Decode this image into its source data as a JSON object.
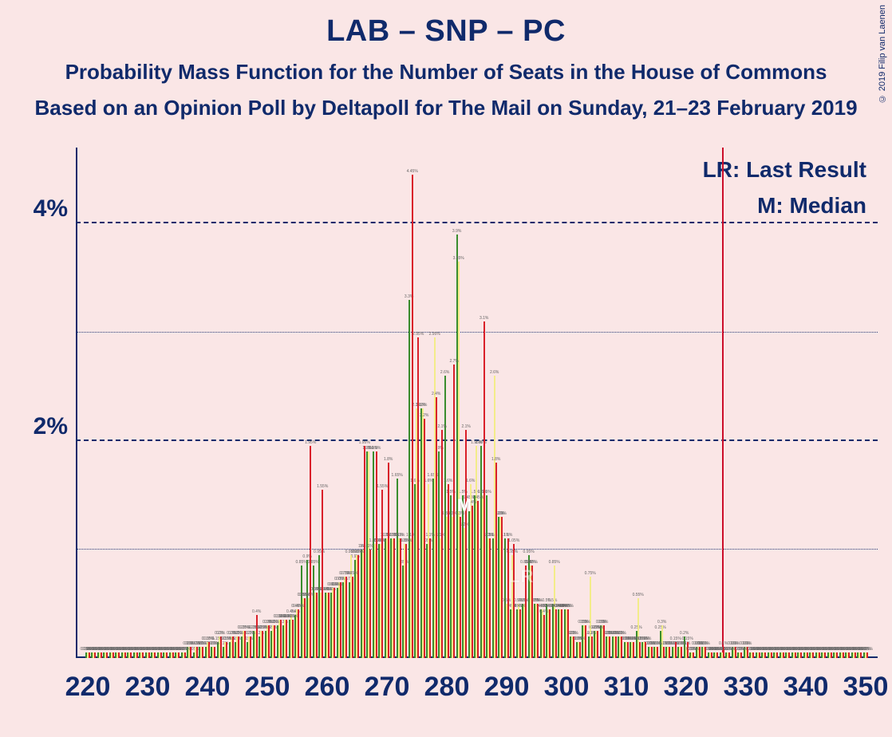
{
  "copyright": "© 2019 Filip van Laenen",
  "titles": {
    "main": "LAB – SNP – PC",
    "sub1": "Probability Mass Function for the Number of Seats in the House of Commons",
    "sub2": "Based on an Opinion Poll by Deltapoll for The Mail on Sunday, 21–23 February 2019"
  },
  "legend": {
    "lr": "LR: Last Result",
    "m": "M: Median"
  },
  "colors": {
    "bg": "#fae6e6",
    "text": "#102a6b",
    "series": [
      "#3a8d2e",
      "#f3ec8a",
      "#d9202a"
    ],
    "vline": "#cc0e2a"
  },
  "chart": {
    "xmin": 218,
    "xmax": 352,
    "ymin": 0,
    "ymax": 4.7,
    "ygrid_major": [
      2,
      4
    ],
    "ygrid_minor": [
      1,
      3
    ],
    "xticks": [
      220,
      230,
      240,
      250,
      260,
      270,
      280,
      290,
      300,
      310,
      320,
      330,
      340,
      350
    ],
    "xtick_format": "{v}",
    "ytick_format": "{v}%",
    "lr_x": 326,
    "median_x": 283,
    "marker_m": "M",
    "marker_lr": "LR",
    "bar_rel_width": 0.27,
    "series": [
      {
        "name": "green",
        "color": "#3a8d2e",
        "offset": 0,
        "data": {
          "220": 0.05,
          "221": 0.05,
          "222": 0.05,
          "223": 0.05,
          "224": 0.05,
          "225": 0.05,
          "226": 0.05,
          "227": 0.05,
          "228": 0.05,
          "229": 0.05,
          "230": 0.05,
          "231": 0.05,
          "232": 0.05,
          "233": 0.05,
          "234": 0.05,
          "235": 0.05,
          "236": 0.05,
          "237": 0.1,
          "238": 0.05,
          "239": 0.1,
          "240": 0.1,
          "241": 0.1,
          "242": 0.15,
          "243": 0.1,
          "244": 0.15,
          "245": 0.15,
          "246": 0.2,
          "247": 0.15,
          "248": 0.25,
          "249": 0.2,
          "250": 0.25,
          "251": 0.25,
          "252": 0.3,
          "253": 0.3,
          "254": 0.35,
          "255": 0.4,
          "256": 0.85,
          "257": 0.9,
          "258": 0.85,
          "259": 0.95,
          "260": 0.6,
          "261": 0.6,
          "262": 0.65,
          "263": 0.7,
          "264": 0.7,
          "265": 0.9,
          "266": 1.0,
          "267": 1.9,
          "268": 1.9,
          "269": 1.05,
          "270": 1.1,
          "271": 1.1,
          "272": 1.65,
          "273": 0.85,
          "274": 3.3,
          "275": 1.6,
          "276": 2.3,
          "277": 1.05,
          "278": 1.65,
          "279": 1.9,
          "280": 2.6,
          "281": 1.5,
          "282": 3.9,
          "283": 1.5,
          "284": 1.45,
          "285": 1.5,
          "286": 1.95,
          "287": 1.5,
          "288": 1.1,
          "289": 1.3,
          "290": 1.1,
          "291": 0.45,
          "292": 0.45,
          "293": 0.5,
          "294": 0.95,
          "295": 0.5,
          "296": 0.45,
          "297": 0.5,
          "298": 0.5,
          "299": 0.45,
          "300": 0.45,
          "301": 0.2,
          "302": 0.15,
          "303": 0.3,
          "304": 0.2,
          "305": 0.25,
          "306": 0.3,
          "307": 0.2,
          "308": 0.2,
          "309": 0.2,
          "310": 0.15,
          "311": 0.15,
          "312": 0.25,
          "313": 0.15,
          "314": 0.1,
          "315": 0.1,
          "316": 0.25,
          "317": 0.1,
          "318": 0.1,
          "319": 0.1,
          "320": 0.2,
          "321": 0.05,
          "322": 0.1,
          "323": 0.1,
          "324": 0.05,
          "325": 0.05,
          "326": 0.05,
          "327": 0.05,
          "328": 0.1,
          "329": 0.05,
          "330": 0.1,
          "331": 0.05,
          "332": 0.05,
          "333": 0.05,
          "334": 0.05,
          "335": 0.05,
          "336": 0.05,
          "337": 0.05,
          "338": 0.05,
          "339": 0.05,
          "340": 0.05,
          "341": 0.05,
          "342": 0.05,
          "343": 0.05,
          "344": 0.05,
          "345": 0.05,
          "346": 0.05,
          "347": 0.05,
          "348": 0.05,
          "349": 0.05,
          "350": 0.05
        }
      },
      {
        "name": "yellow",
        "color": "#f3ec8a",
        "offset": 1,
        "data": {
          "220": 0.05,
          "221": 0.05,
          "222": 0.05,
          "223": 0.05,
          "224": 0.05,
          "225": 0.05,
          "226": 0.05,
          "227": 0.05,
          "228": 0.05,
          "229": 0.05,
          "230": 0.05,
          "231": 0.05,
          "232": 0.05,
          "233": 0.05,
          "234": 0.05,
          "235": 0.05,
          "236": 0.05,
          "237": 0.1,
          "238": 0.1,
          "239": 0.1,
          "240": 0.15,
          "241": 0.1,
          "242": 0.2,
          "243": 0.15,
          "244": 0.2,
          "245": 0.2,
          "246": 0.25,
          "247": 0.2,
          "248": 0.25,
          "249": 0.25,
          "250": 0.3,
          "251": 0.3,
          "252": 0.35,
          "253": 0.35,
          "254": 0.4,
          "255": 0.45,
          "256": 0.55,
          "257": 0.55,
          "258": 0.6,
          "259": 0.6,
          "260": 0.6,
          "261": 0.65,
          "262": 0.7,
          "263": 0.75,
          "264": 0.95,
          "265": 0.95,
          "266": 1.0,
          "267": 1.9,
          "268": 1.05,
          "269": 1.05,
          "270": 1.1,
          "271": 1.1,
          "272": 1.1,
          "273": 1.05,
          "274": 1.1,
          "275": 2.3,
          "276": 2.3,
          "277": 1.6,
          "278": 2.95,
          "279": 1.1,
          "280": 1.3,
          "281": 1.3,
          "282": 3.65,
          "283": 1.2,
          "284": 1.6,
          "285": 1.95,
          "286": 1.5,
          "287": 1.1,
          "288": 2.6,
          "289": 1.3,
          "290": 0.5,
          "291": 0.95,
          "292": 0.5,
          "293": 0.5,
          "294": 0.85,
          "295": 0.5,
          "296": 0.45,
          "297": 0.45,
          "298": 0.85,
          "299": 0.45,
          "300": 0.45,
          "301": 0.2,
          "302": 0.15,
          "303": 0.3,
          "304": 0.75,
          "305": 0.25,
          "306": 0.3,
          "307": 0.2,
          "308": 0.2,
          "309": 0.2,
          "310": 0.15,
          "311": 0.15,
          "312": 0.55,
          "313": 0.15,
          "314": 0.1,
          "315": 0.1,
          "316": 0.3,
          "317": 0.1,
          "318": 0.1,
          "319": 0.1,
          "320": 0.1,
          "321": 0.05,
          "322": 0.1,
          "323": 0.1,
          "324": 0.05,
          "325": 0.05,
          "326": 0.05,
          "327": 0.05,
          "328": 0.1,
          "329": 0.05,
          "330": 0.1,
          "331": 0.05,
          "332": 0.05,
          "333": 0.05,
          "334": 0.05,
          "335": 0.05,
          "336": 0.05,
          "337": 0.05,
          "338": 0.05,
          "339": 0.05,
          "340": 0.05,
          "341": 0.05,
          "342": 0.05,
          "343": 0.05,
          "344": 0.05,
          "345": 0.05,
          "346": 0.05,
          "347": 0.05,
          "348": 0.05,
          "349": 0.05,
          "350": 0.05
        }
      },
      {
        "name": "red",
        "color": "#d9202a",
        "offset": 2,
        "data": {
          "220": 0.05,
          "221": 0.05,
          "222": 0.05,
          "223": 0.05,
          "224": 0.05,
          "225": 0.05,
          "226": 0.05,
          "227": 0.05,
          "228": 0.05,
          "229": 0.05,
          "230": 0.05,
          "231": 0.05,
          "232": 0.05,
          "233": 0.05,
          "234": 0.05,
          "235": 0.05,
          "236": 0.05,
          "237": 0.1,
          "238": 0.1,
          "239": 0.1,
          "240": 0.15,
          "241": 0.1,
          "242": 0.2,
          "243": 0.15,
          "244": 0.2,
          "245": 0.2,
          "246": 0.25,
          "247": 0.2,
          "248": 0.4,
          "249": 0.25,
          "250": 0.3,
          "251": 0.3,
          "252": 0.35,
          "253": 0.35,
          "254": 0.35,
          "255": 0.45,
          "256": 0.55,
          "257": 1.95,
          "258": 0.6,
          "259": 1.55,
          "260": 0.6,
          "261": 0.65,
          "262": 0.7,
          "263": 0.75,
          "264": 0.75,
          "265": 0.95,
          "266": 1.95,
          "267": 1.0,
          "268": 1.9,
          "269": 1.55,
          "270": 1.8,
          "271": 1.1,
          "272": 1.1,
          "273": 1.05,
          "274": 4.45,
          "275": 2.95,
          "276": 2.2,
          "277": 1.1,
          "278": 2.4,
          "279": 2.1,
          "280": 1.6,
          "281": 2.7,
          "282": 1.3,
          "283": 2.1,
          "284": 1.4,
          "285": 1.45,
          "286": 3.1,
          "287": 1.1,
          "288": 1.8,
          "289": 1.3,
          "290": 1.1,
          "291": 1.05,
          "292": 0.45,
          "293": 0.85,
          "294": 0.85,
          "295": 0.5,
          "296": 0.4,
          "297": 0.45,
          "298": 0.45,
          "299": 0.45,
          "300": 0.45,
          "301": 0.2,
          "302": 0.15,
          "303": 0.3,
          "304": 0.2,
          "305": 0.25,
          "306": 0.3,
          "307": 0.2,
          "308": 0.2,
          "309": 0.2,
          "310": 0.15,
          "311": 0.15,
          "312": 0.15,
          "313": 0.15,
          "314": 0.1,
          "315": 0.1,
          "316": 0.1,
          "317": 0.1,
          "318": 0.15,
          "319": 0.1,
          "320": 0.15,
          "321": 0.05,
          "322": 0.1,
          "323": 0.1,
          "324": 0.05,
          "325": 0.05,
          "326": 0.1,
          "327": 0.05,
          "328": 0.1,
          "329": 0.05,
          "330": 0.1,
          "331": 0.05,
          "332": 0.05,
          "333": 0.05,
          "334": 0.05,
          "335": 0.05,
          "336": 0.05,
          "337": 0.05,
          "338": 0.05,
          "339": 0.05,
          "340": 0.05,
          "341": 0.05,
          "342": 0.05,
          "343": 0.05,
          "344": 0.05,
          "345": 0.05,
          "346": 0.05,
          "347": 0.05,
          "348": 0.05,
          "349": 0.05,
          "350": 0.05
        }
      }
    ]
  }
}
